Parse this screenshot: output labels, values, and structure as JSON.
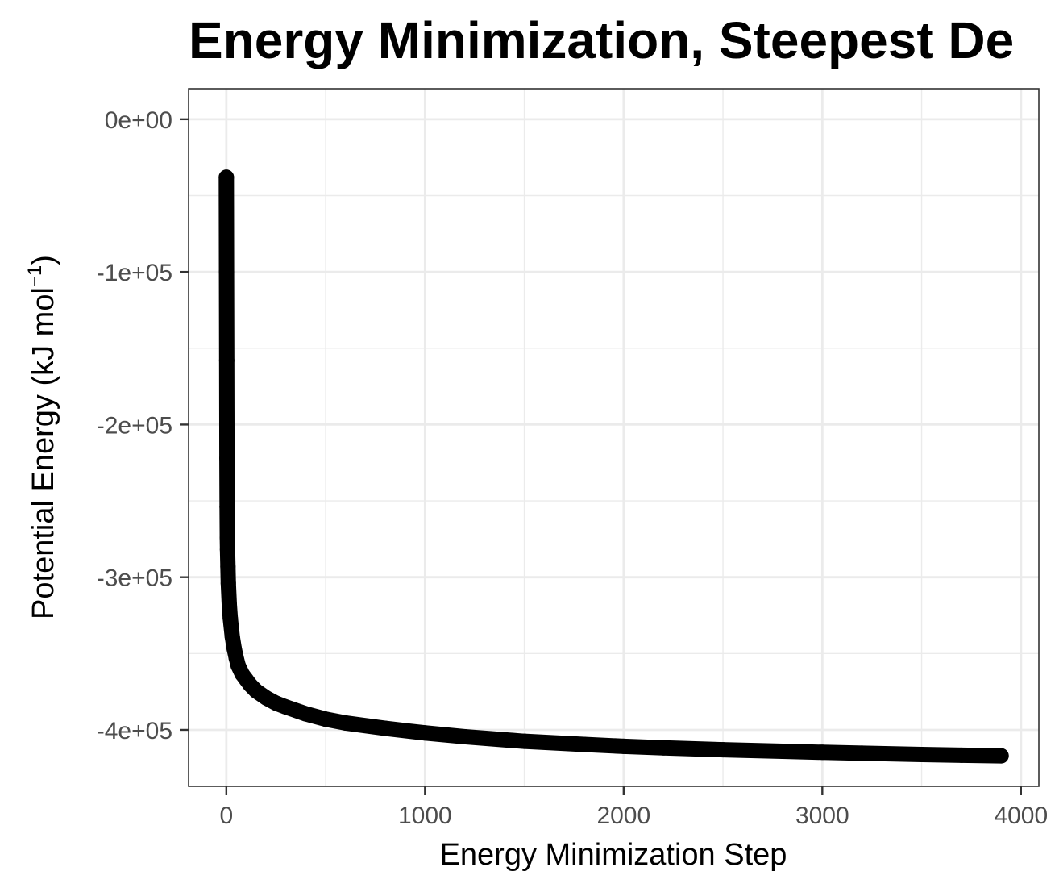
{
  "chart_data": {
    "type": "line",
    "title": "Energy Minimization, Steepest De",
    "xlabel": "Energy Minimization Step",
    "ylabel_main": "Potential Energy (kJ  mol",
    "ylabel_sup": "−1",
    "ylabel_close": ")",
    "xlim": [
      -190,
      4090
    ],
    "ylim": [
      -437000,
      20000
    ],
    "x_ticks": [
      0,
      1000,
      2000,
      3000,
      4000
    ],
    "x_tick_labels": [
      "0",
      "1000",
      "2000",
      "3000",
      "4000"
    ],
    "y_ticks": [
      0,
      -100000,
      -200000,
      -300000,
      -400000
    ],
    "y_tick_labels": [
      "0e+00",
      "-1e+05",
      "-2e+05",
      "-3e+05",
      "-4e+05"
    ],
    "grid": true,
    "colors": {
      "line": "#000000",
      "point": "#000000",
      "grid": "#ebebeb",
      "panel_border": "#333333"
    },
    "series": [
      {
        "markers": true,
        "x": [
          0,
          1,
          2,
          3,
          4,
          5,
          6,
          8,
          10,
          15,
          20,
          30,
          40,
          50,
          60,
          80,
          100,
          120,
          150,
          200,
          250,
          300,
          400,
          500,
          600,
          800,
          1000,
          1200,
          1500,
          1800,
          2000,
          2200,
          2500,
          2800,
          3000,
          3200,
          3500,
          3700,
          3900
        ],
        "y": [
          -38000,
          -100000,
          -158000,
          -222000,
          -254000,
          -274000,
          -282000,
          -293000,
          -304000,
          -318000,
          -327000,
          -339000,
          -347000,
          -353000,
          -358000,
          -363500,
          -367000,
          -370500,
          -374500,
          -379000,
          -382500,
          -385000,
          -389500,
          -393000,
          -395500,
          -399000,
          -402000,
          -404500,
          -407500,
          -409500,
          -410800,
          -411800,
          -413000,
          -414000,
          -414700,
          -415300,
          -416100,
          -416600,
          -417000
        ]
      }
    ]
  }
}
